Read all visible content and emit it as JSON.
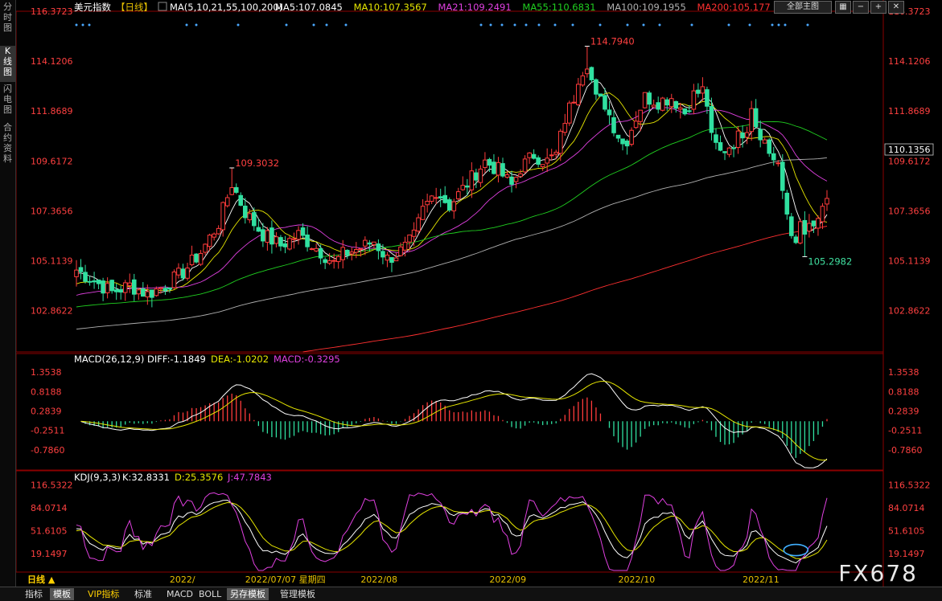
{
  "window": {
    "sidebar_tabs": [
      "分时图",
      "K线图",
      "闪电图",
      "合约资料"
    ],
    "active_tab": 1,
    "controls": {
      "dropdown": "全部主图",
      "icons": [
        "grid-icon",
        "minus-icon",
        "plus-icon",
        "close-icon"
      ]
    }
  },
  "bottom_tabs": [
    {
      "label": "日线 ▲",
      "active": false,
      "color": "#ffd000"
    },
    {
      "label": "指标",
      "active": false
    },
    {
      "label": "模板",
      "active": true
    },
    {
      "label": "VIP指标",
      "active": false,
      "color": "#ffd000"
    },
    {
      "label": "标准",
      "active": false
    },
    {
      "label": "MACD",
      "active": false
    },
    {
      "label": "BOLL",
      "active": false
    },
    {
      "label": "另存模板",
      "active": true
    },
    {
      "label": "管理模板",
      "active": false
    }
  ],
  "watermark": "FX678",
  "chart_data": {
    "type": "candlestick",
    "main_header": {
      "name": "美元指数",
      "period": "【日线】",
      "ma_params": "MA(5,10,21,55,100,200)",
      "items": [
        {
          "label": "MA5:107.0845",
          "color": "#ffffff"
        },
        {
          "label": "MA10:107.3567",
          "color": "#e6e600"
        },
        {
          "label": "MA21:109.2491",
          "color": "#e040e0"
        },
        {
          "label": "MA55:110.6831",
          "color": "#20d020"
        },
        {
          "label": "MA100:109.1955",
          "color": "#b0b0b0"
        },
        {
          "label": "MA200:105.177",
          "color": "#ff3030"
        }
      ]
    },
    "main_axis_labels": [
      "116.3723",
      "114.1206",
      "111.8689",
      "109.6172",
      "107.3656",
      "105.1139",
      "102.8622"
    ],
    "main_ylim": [
      101.0,
      116.3723
    ],
    "current_price": "110.1356",
    "annotations": [
      {
        "text": "114.7940",
        "type": "high",
        "value": 114.794,
        "index": 115
      },
      {
        "text": "109.3032",
        "type": "high",
        "value": 109.3032,
        "index": 35
      },
      {
        "text": "105.2982",
        "type": "low",
        "value": 105.2982,
        "index": 164
      }
    ],
    "x_labels": [
      {
        "text": "2022/",
        "index": 21
      },
      {
        "text": "2022/07/07 星期四",
        "index": 38
      },
      {
        "text": "2022/08",
        "index": 64
      },
      {
        "text": "2022/09",
        "index": 93
      },
      {
        "text": "2022/10",
        "index": 122
      },
      {
        "text": "2022/11",
        "index": 150
      }
    ],
    "anchors": [
      [
        0,
        104.7
      ],
      [
        4,
        104.2
      ],
      [
        8,
        103.7
      ],
      [
        12,
        104.0
      ],
      [
        16,
        103.6
      ],
      [
        20,
        104.0
      ],
      [
        24,
        104.6
      ],
      [
        28,
        105.5
      ],
      [
        32,
        106.8
      ],
      [
        35,
        108.6
      ],
      [
        38,
        107.3
      ],
      [
        42,
        106.3
      ],
      [
        46,
        105.8
      ],
      [
        50,
        106.3
      ],
      [
        54,
        105.7
      ],
      [
        58,
        105.0
      ],
      [
        60,
        105.4
      ],
      [
        64,
        105.7
      ],
      [
        67,
        106.0
      ],
      [
        70,
        105.2
      ],
      [
        72,
        105.4
      ],
      [
        74,
        105.7
      ],
      [
        76,
        106.2
      ],
      [
        78,
        107.4
      ],
      [
        81,
        108.3
      ],
      [
        84,
        107.6
      ],
      [
        88,
        108.6
      ],
      [
        92,
        109.6
      ],
      [
        95,
        109.2
      ],
      [
        98,
        108.5
      ],
      [
        100,
        109.3
      ],
      [
        103,
        109.9
      ],
      [
        106,
        109.6
      ],
      [
        108,
        109.9
      ],
      [
        110,
        111.5
      ],
      [
        112,
        112.5
      ],
      [
        113,
        113.4
      ],
      [
        115,
        114.1
      ],
      [
        117,
        112.4
      ],
      [
        119,
        112.2
      ],
      [
        121,
        111.2
      ],
      [
        123,
        110.4
      ],
      [
        124,
        110.6
      ],
      [
        126,
        111.6
      ],
      [
        128,
        112.5
      ],
      [
        131,
        112.3
      ],
      [
        134,
        112.5
      ],
      [
        137,
        111.8
      ],
      [
        139,
        112.6
      ],
      [
        141,
        112.8
      ],
      [
        142,
        112.2
      ],
      [
        143,
        110.6
      ],
      [
        145,
        110.0
      ],
      [
        147,
        110.3
      ],
      [
        149,
        110.7
      ],
      [
        151,
        111.2
      ],
      [
        152,
        112.2
      ],
      [
        153,
        111.3
      ],
      [
        155,
        110.5
      ],
      [
        156,
        110.0
      ],
      [
        158,
        109.5
      ],
      [
        159,
        108.0
      ],
      [
        160,
        107.2
      ],
      [
        161,
        106.3
      ],
      [
        162,
        106.2
      ],
      [
        163,
        106.6
      ],
      [
        164,
        106.2
      ],
      [
        165,
        106.8
      ],
      [
        166,
        106.4
      ],
      [
        167,
        106.9
      ],
      [
        168,
        107.6
      ],
      [
        169,
        107.6
      ]
    ],
    "macd": {
      "header": {
        "name": "MACD(26,12,9)",
        "diff": "DIFF:-1.1849",
        "dea": "DEA:-1.0202",
        "macd": "MACD:-0.3295"
      },
      "axis_labels": [
        "1.3538",
        "0.8188",
        "0.2839",
        "-0.2511",
        "-0.7860"
      ],
      "ylim": [
        -1.3,
        1.6
      ]
    },
    "kdj": {
      "header": {
        "name": "KDJ(9,3,3)",
        "k": "K:32.8331",
        "d": "D:25.3576",
        "j": "J:47.7843"
      },
      "axis_labels": [
        "116.5322",
        "84.0714",
        "51.6105",
        "19.1497"
      ],
      "ylim": [
        -5,
        125
      ]
    },
    "colors": {
      "up": "#ff3b3b",
      "down": "#30e0a0",
      "ma5": "#ffffff",
      "ma10": "#e6e600",
      "ma21": "#e040e0",
      "ma55": "#20d020",
      "ma100": "#b0b0b0",
      "ma200": "#ff3030",
      "diff": "#ffffff",
      "dea": "#e6e600",
      "k": "#ffffff",
      "d": "#e6e600",
      "j": "#e040e0",
      "axis": "#8b0000",
      "label_up": "#ff4040",
      "label_down": "#40e0a0",
      "circle": "#40b0ff"
    }
  }
}
